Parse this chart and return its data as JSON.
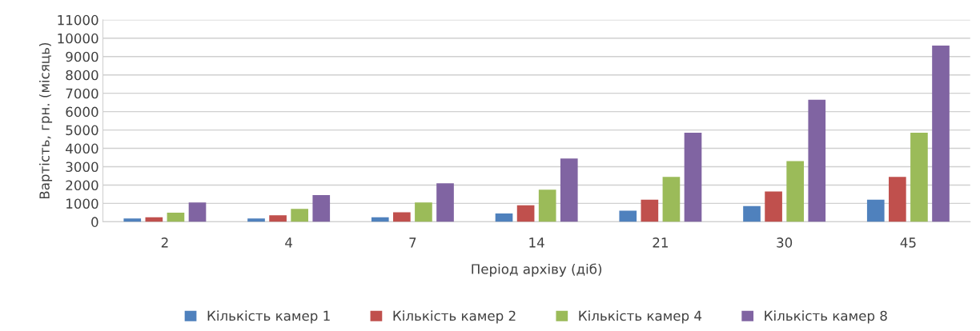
{
  "chart_data": {
    "type": "bar",
    "xlabel": "Період архіву (діб)",
    "ylabel": "Вартість, грн. (місяць)",
    "categories": [
      "2",
      "4",
      "7",
      "14",
      "21",
      "30",
      "45"
    ],
    "series": [
      {
        "name": "Кількість камер 1",
        "color": "#4f81bd",
        "values": [
          180,
          180,
          250,
          450,
          600,
          850,
          1200
        ]
      },
      {
        "name": "Кількість камер 2",
        "color": "#c0504d",
        "values": [
          250,
          350,
          520,
          900,
          1200,
          1650,
          2450
        ]
      },
      {
        "name": "Кількість камер 4",
        "color": "#9bbb59",
        "values": [
          500,
          700,
          1050,
          1750,
          2450,
          3300,
          4850
        ]
      },
      {
        "name": "Кількість камер 8",
        "color": "#8064a2",
        "values": [
          1050,
          1450,
          2100,
          3450,
          4850,
          6650,
          9600
        ]
      }
    ],
    "ylim": [
      0,
      11000
    ],
    "yticks": [
      0,
      1000,
      2000,
      3000,
      4000,
      5000,
      6000,
      7000,
      8000,
      9000,
      10000,
      11000
    ],
    "grid": "y",
    "legend": "bottom"
  }
}
